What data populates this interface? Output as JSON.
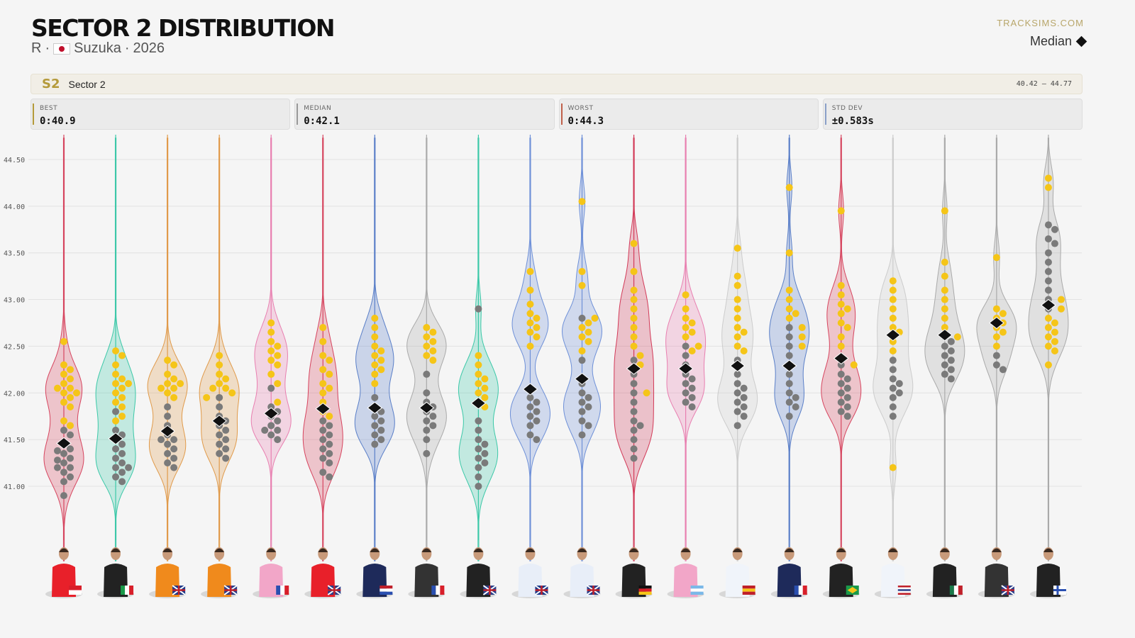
{
  "header": {
    "title": "SECTOR 2 DISTRIBUTION",
    "session": "R",
    "circuit": "Suzuka",
    "year": "2026",
    "brand": "TRACKSIMS.COM",
    "legend_median": "Median"
  },
  "sector": {
    "code": "S2",
    "name": "Sector 2",
    "range": "40.42 – 44.77"
  },
  "stats": [
    {
      "label": "BEST",
      "value": "0:40.9",
      "color": "#b49a3a"
    },
    {
      "label": "MEDIAN",
      "value": "0:42.1",
      "color": "#999999"
    },
    {
      "label": "WORST",
      "value": "0:44.3",
      "color": "#c0604a"
    },
    {
      "label": "STD DEV",
      "value": "±0.583s",
      "color": "#8aa0c8"
    }
  ],
  "chart_data": {
    "type": "violin-swarm",
    "ylim": [
      40.2,
      44.77
    ],
    "yticks": [
      "41.00",
      "41.50",
      "42.00",
      "42.50",
      "43.00",
      "43.50",
      "44.00",
      "44.50"
    ],
    "grid": true,
    "point_colors": {
      "yellow": "#f5c518",
      "gray": "#7a7a7a"
    },
    "drivers": [
      {
        "flag": "Monaco",
        "team_color": "#d6455f",
        "suit": "#e8202a",
        "median": 41.46,
        "yellow": [
          42.55,
          42.3,
          42.25,
          42.2,
          42.15,
          42.1,
          42.05,
          42.05,
          42.0,
          42.0,
          41.95,
          41.9,
          41.85,
          41.7,
          41.65
        ],
        "gray": [
          41.6,
          41.55,
          41.45,
          41.4,
          41.38,
          41.35,
          41.3,
          41.28,
          41.25,
          41.2,
          41.2,
          41.15,
          41.1,
          41.05,
          40.9
        ]
      },
      {
        "flag": "Italy",
        "team_color": "#3cc8a8",
        "suit": "#222",
        "median": 41.51,
        "yellow": [
          42.45,
          42.4,
          42.3,
          42.2,
          42.15,
          42.1,
          42.1,
          42.05,
          42.0,
          41.95,
          41.9,
          41.85,
          41.75,
          41.7
        ],
        "gray": [
          41.8,
          41.6,
          41.55,
          41.5,
          41.45,
          41.4,
          41.35,
          41.3,
          41.25,
          41.2,
          41.2,
          41.15,
          41.1,
          41.05
        ]
      },
      {
        "flag": "Australia",
        "team_color": "#e09a4a",
        "suit": "#f08a1c",
        "median": 41.59,
        "yellow": [
          42.35,
          42.3,
          42.2,
          42.15,
          42.1,
          42.1,
          42.05,
          42.05,
          42.0,
          41.95
        ],
        "gray": [
          41.85,
          41.75,
          41.65,
          41.55,
          41.5,
          41.5,
          41.45,
          41.4,
          41.35,
          41.3,
          41.25,
          41.2
        ]
      },
      {
        "flag": "United Kingdom",
        "team_color": "#e09a4a",
        "suit": "#f08a1c",
        "median": 41.7,
        "yellow": [
          42.4,
          42.3,
          42.2,
          42.15,
          42.1,
          42.05,
          42.05,
          42.0,
          41.95
        ],
        "gray": [
          41.95,
          41.85,
          41.75,
          41.7,
          41.65,
          41.6,
          41.55,
          41.5,
          41.45,
          41.4,
          41.35,
          41.3
        ]
      },
      {
        "flag": "France",
        "team_color": "#e87fb0",
        "suit": "#f2a6c8",
        "median": 41.78,
        "yellow": [
          42.75,
          42.65,
          42.55,
          42.5,
          42.45,
          42.4,
          42.35,
          42.3,
          42.2,
          42.1,
          41.9
        ],
        "gray": [
          42.05,
          41.85,
          41.8,
          41.75,
          41.7,
          41.65,
          41.6,
          41.6,
          41.55,
          41.5
        ]
      },
      {
        "flag": "United Kingdom",
        "team_color": "#d6455f",
        "suit": "#e8202a",
        "median": 41.83,
        "yellow": [
          42.7,
          42.55,
          42.4,
          42.35,
          42.25,
          42.2,
          42.1,
          42.05,
          42.0,
          41.9,
          41.8,
          41.75
        ],
        "gray": [
          41.7,
          41.65,
          41.6,
          41.55,
          41.5,
          41.45,
          41.4,
          41.35,
          41.3,
          41.25,
          41.15,
          41.1
        ]
      },
      {
        "flag": "Netherlands",
        "team_color": "#5a7fc8",
        "suit": "#1e2a5a",
        "median": 41.84,
        "yellow": [
          42.8,
          42.7,
          42.6,
          42.5,
          42.45,
          42.4,
          42.35,
          42.3,
          42.25,
          42.2,
          42.1
        ],
        "gray": [
          41.95,
          41.85,
          41.8,
          41.75,
          41.7,
          41.65,
          41.6,
          41.55,
          41.5,
          41.45
        ]
      },
      {
        "flag": "France",
        "team_color": "#aaaaaa",
        "suit": "#333",
        "median": 41.84,
        "yellow": [
          42.7,
          42.65,
          42.6,
          42.55,
          42.5,
          42.45,
          42.4,
          42.35
        ],
        "gray": [
          42.2,
          42.0,
          41.9,
          41.85,
          41.8,
          41.75,
          41.7,
          41.65,
          41.6,
          41.5,
          41.35
        ]
      },
      {
        "flag": "United Kingdom",
        "team_color": "#3cc8a8",
        "suit": "#222",
        "median": 41.89,
        "yellow": [
          42.4,
          42.3,
          42.2,
          42.15,
          42.1,
          42.05,
          42.0,
          41.95,
          41.9,
          41.85
        ],
        "gray": [
          42.9,
          41.7,
          41.6,
          41.5,
          41.45,
          41.4,
          41.35,
          41.3,
          41.25,
          41.2,
          41.1,
          41.0
        ]
      },
      {
        "flag": "New Zealand",
        "team_color": "#6e90d8",
        "suit": "#e8eef8",
        "median": 42.04,
        "yellow": [
          43.3,
          43.1,
          42.95,
          42.85,
          42.8,
          42.75,
          42.7,
          42.65,
          42.6,
          42.5
        ],
        "gray": [
          42.05,
          41.95,
          41.9,
          41.85,
          41.8,
          41.75,
          41.7,
          41.65,
          41.55,
          41.5
        ]
      },
      {
        "flag": "United Kingdom",
        "team_color": "#6e90d8",
        "suit": "#e8eef8",
        "median": 42.15,
        "yellow": [
          44.05,
          43.3,
          43.15,
          42.8,
          42.75,
          42.7,
          42.65,
          42.6,
          42.55,
          42.45
        ],
        "gray": [
          42.8,
          42.35,
          42.1,
          42.0,
          41.95,
          41.9,
          41.85,
          41.8,
          41.7,
          41.65,
          41.55
        ]
      },
      {
        "flag": "Germany",
        "team_color": "#d23a58",
        "suit": "#222",
        "median": 42.26,
        "yellow": [
          43.6,
          43.3,
          43.1,
          43.0,
          42.9,
          42.8,
          42.7,
          42.6,
          42.5,
          42.4,
          42.3,
          42.0
        ],
        "gray": [
          42.35,
          42.2,
          42.1,
          42.0,
          41.9,
          41.8,
          41.7,
          41.65,
          41.6,
          41.5,
          41.4,
          41.3
        ]
      },
      {
        "flag": "Argentina",
        "team_color": "#e87fb0",
        "suit": "#f2a6c8",
        "median": 42.26,
        "yellow": [
          43.05,
          42.9,
          42.8,
          42.75,
          42.7,
          42.65,
          42.6,
          42.5,
          42.45
        ],
        "gray": [
          42.5,
          42.4,
          42.3,
          42.2,
          42.15,
          42.1,
          42.05,
          42.0,
          41.95,
          41.9,
          41.85
        ]
      },
      {
        "flag": "Spain",
        "team_color": "#cccccc",
        "suit": "#f0f4fa",
        "median": 42.29,
        "yellow": [
          43.55,
          43.25,
          43.15,
          43.0,
          42.9,
          42.8,
          42.7,
          42.65,
          42.6,
          42.5,
          42.45
        ],
        "gray": [
          42.35,
          42.2,
          42.1,
          42.05,
          42.0,
          41.95,
          41.9,
          41.85,
          41.8,
          41.75,
          41.65
        ]
      },
      {
        "flag": "France",
        "team_color": "#5a7fc8",
        "suit": "#1e2a5a",
        "median": 42.29,
        "yellow": [
          44.2,
          43.5,
          43.1,
          43.0,
          42.9,
          42.85,
          42.8,
          42.7,
          42.6,
          42.5
        ],
        "gray": [
          42.7,
          42.6,
          42.5,
          42.4,
          42.3,
          42.2,
          42.1,
          42.0,
          41.95,
          41.9,
          41.85,
          41.75
        ]
      },
      {
        "flag": "Brazil",
        "team_color": "#d6455f",
        "suit": "#222",
        "median": 42.37,
        "yellow": [
          43.95,
          43.15,
          43.05,
          42.95,
          42.9,
          42.85,
          42.75,
          42.7,
          42.6,
          42.5,
          42.3
        ],
        "gray": [
          42.3,
          42.2,
          42.15,
          42.1,
          42.05,
          42.0,
          41.95,
          41.9,
          41.85,
          41.8,
          41.75
        ]
      },
      {
        "flag": "Thailand",
        "team_color": "#cccccc",
        "suit": "#f0f4fa",
        "median": 42.62,
        "yellow": [
          43.2,
          43.1,
          43.0,
          42.9,
          42.8,
          42.7,
          42.65,
          42.55,
          42.45,
          41.2
        ],
        "gray": [
          42.35,
          42.25,
          42.15,
          42.1,
          42.05,
          42.0,
          41.95,
          41.85,
          41.75
        ]
      },
      {
        "flag": "Mexico",
        "team_color": "#aaaaaa",
        "suit": "#222",
        "median": 42.62,
        "yellow": [
          43.95,
          43.4,
          43.25,
          43.1,
          43.0,
          42.9,
          42.8,
          42.7,
          42.6
        ],
        "gray": [
          42.6,
          42.55,
          42.5,
          42.45,
          42.4,
          42.35,
          42.3,
          42.25,
          42.2,
          42.15
        ]
      },
      {
        "flag": "United Kingdom",
        "team_color": "#aaaaaa",
        "suit": "#333",
        "median": 42.75,
        "yellow": [
          43.45,
          42.9,
          42.85,
          42.8,
          42.75,
          42.7,
          42.65,
          42.6,
          42.5
        ],
        "gray": [
          42.4,
          42.3,
          42.25
        ]
      },
      {
        "flag": "Finland",
        "team_color": "#aaaaaa",
        "suit": "#222",
        "median": 42.94,
        "yellow": [
          44.3,
          44.2,
          43.0,
          42.9,
          42.8,
          42.75,
          42.7,
          42.65,
          42.6,
          42.55,
          42.5,
          42.45,
          42.3
        ],
        "gray": [
          43.8,
          43.75,
          43.65,
          43.6,
          43.5,
          43.4,
          43.3,
          43.2,
          43.1,
          43.0,
          42.9
        ]
      }
    ]
  }
}
